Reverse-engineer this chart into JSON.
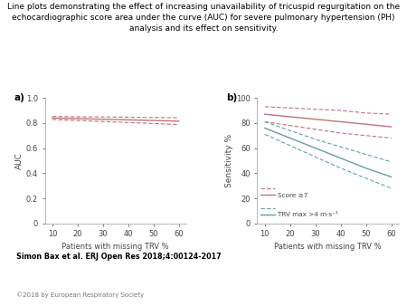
{
  "title": "Line plots demonstrating the effect of increasing unavailability of tricuspid regurgitation on the\nechocardiographic score area under the curve (AUC) for severe pulmonary hypertension (PH)\nanalysis and its effect on sensitivity.",
  "x": [
    10,
    20,
    30,
    40,
    50,
    60
  ],
  "panel_a": {
    "label": "a)",
    "ylabel": "AUC",
    "xlabel": "Patients with missing TRV %",
    "ylim": [
      0,
      1.0
    ],
    "yticks": [
      0,
      0.2,
      0.4,
      0.6,
      0.8,
      1.0
    ],
    "xticks": [
      10,
      20,
      30,
      40,
      50,
      60
    ],
    "line_main": [
      0.84,
      0.835,
      0.83,
      0.825,
      0.82,
      0.815
    ],
    "line_upper": [
      0.852,
      0.85,
      0.848,
      0.846,
      0.844,
      0.842
    ],
    "line_lower": [
      0.828,
      0.82,
      0.812,
      0.804,
      0.796,
      0.788
    ],
    "color_main": "#c0737a",
    "color_ci": "#c0737a"
  },
  "panel_b": {
    "label": "b)",
    "ylabel": "Sensitivity %",
    "xlabel": "Patients with missing TRV %",
    "ylim": [
      0,
      100
    ],
    "yticks": [
      0,
      20,
      40,
      60,
      80,
      100
    ],
    "xticks": [
      10,
      20,
      30,
      40,
      50,
      60
    ],
    "score7_main": [
      87,
      85,
      83,
      81,
      79,
      77
    ],
    "score7_upper": [
      93,
      92,
      91,
      90,
      88,
      87
    ],
    "score7_lower": [
      81,
      78,
      75,
      72,
      70,
      68
    ],
    "trv_main": [
      76,
      68,
      60,
      52,
      44,
      37
    ],
    "trv_upper": [
      81,
      74,
      67,
      61,
      55,
      49
    ],
    "trv_lower": [
      71,
      62,
      53,
      44,
      36,
      28
    ],
    "color_score7": "#c0737a",
    "color_trv": "#6a9e9f",
    "legend_score7": "Score ≳7",
    "legend_trv": "TRV max >4 m·s⁻¹"
  },
  "footnote1": "Simon Bax et al. ERJ Open Res 2018;4:00124-2017",
  "footnote2": "©2018 by European Respiratory Society",
  "bg_color": "#ffffff"
}
